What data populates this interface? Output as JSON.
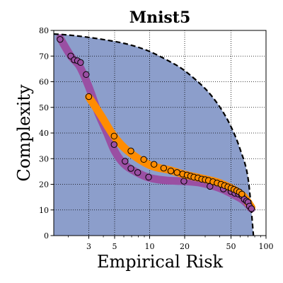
{
  "chart_data": {
    "type": "scatter",
    "title": "Mnist5",
    "xlabel": "Empirical Risk",
    "ylabel": "Complexity",
    "xscale": "log",
    "xlim": [
      1.5,
      100
    ],
    "ylim": [
      0,
      80
    ],
    "grid": true,
    "x_ticks": [
      {
        "value": 3,
        "label": "3"
      },
      {
        "value": 5,
        "label": "5"
      },
      {
        "value": 10,
        "label": "10"
      },
      {
        "value": 20,
        "label": "20"
      },
      {
        "value": 50,
        "label": "50"
      },
      {
        "value": 100,
        "label": "100"
      }
    ],
    "y_ticks": [
      {
        "value": 0,
        "label": "0"
      },
      {
        "value": 10,
        "label": "10"
      },
      {
        "value": 20,
        "label": "20"
      },
      {
        "value": 30,
        "label": "30"
      },
      {
        "value": 40,
        "label": "40"
      },
      {
        "value": 50,
        "label": "50"
      },
      {
        "value": 60,
        "label": "60"
      },
      {
        "value": 70,
        "label": "70"
      },
      {
        "value": 80,
        "label": "80"
      }
    ],
    "colors": {
      "region": "#8c9ecb",
      "purple": "#9a4fa3",
      "orange": "#ff8c00",
      "boundary": "#000000",
      "marker_edge": "#000000"
    },
    "boundary_curve": {
      "style": "dashed",
      "x": [
        1.5,
        2,
        3,
        5,
        7,
        10,
        15,
        20,
        30,
        40,
        50,
        60,
        70,
        78
      ],
      "y": [
        78.6,
        78.2,
        77.3,
        75.7,
        74.2,
        71.8,
        67.8,
        64.3,
        57.3,
        50.2,
        42.5,
        33.6,
        22.5,
        0
      ]
    },
    "series": [
      {
        "color": "purple",
        "band": [
          [
            1.7,
            77
          ],
          [
            2.1,
            70
          ],
          [
            2.5,
            66
          ],
          [
            3.0,
            58
          ],
          [
            3.6,
            48
          ],
          [
            4.3,
            40
          ],
          [
            5.0,
            33
          ],
          [
            6.0,
            28
          ],
          [
            7.5,
            25
          ],
          [
            10,
            22.5
          ],
          [
            14,
            21.5
          ],
          [
            20,
            21.2
          ],
          [
            28,
            20.5
          ],
          [
            40,
            18.5
          ],
          [
            55,
            15.5
          ],
          [
            65,
            13.5
          ],
          [
            75,
            10.5
          ]
        ],
        "x": [
          1.7,
          2.1,
          2.25,
          2.4,
          2.55,
          2.85,
          4.95,
          6.15,
          6.9,
          7.9,
          9.8,
          19.7,
          33,
          43,
          50,
          54,
          58,
          62,
          65,
          68,
          70,
          72,
          75
        ],
        "y": [
          76.5,
          70,
          68.5,
          68.2,
          67.5,
          62.8,
          35.5,
          29,
          26.2,
          24.6,
          22.8,
          21.2,
          19.2,
          18.2,
          17.2,
          16.5,
          16.2,
          15.5,
          14.2,
          13.5,
          13,
          11.5,
          10.5
        ]
      },
      {
        "color": "orange",
        "band": [
          [
            3.0,
            54
          ],
          [
            3.8,
            47
          ],
          [
            4.9,
            39
          ],
          [
            6.5,
            33
          ],
          [
            10,
            27.5
          ],
          [
            15,
            25.5
          ],
          [
            20,
            23.8
          ],
          [
            30,
            22
          ],
          [
            40,
            20.5
          ],
          [
            55,
            17.5
          ],
          [
            65,
            15
          ],
          [
            75,
            11
          ]
        ],
        "x": [
          3.0,
          4.95,
          6.9,
          8.9,
          10.9,
          13.2,
          15.2,
          17.2,
          19.2,
          21,
          22.5,
          24,
          26,
          28,
          30,
          32,
          35,
          38,
          41,
          44,
          47,
          50,
          53,
          56,
          59,
          62
        ],
        "y": [
          54.2,
          38.8,
          33,
          29.7,
          27.8,
          26.3,
          25.2,
          24.6,
          24,
          23.6,
          23.2,
          22.8,
          22.5,
          22,
          21.8,
          21.5,
          21,
          20.5,
          20,
          19.5,
          19,
          18.5,
          18,
          17.5,
          17,
          16.2
        ]
      }
    ]
  }
}
